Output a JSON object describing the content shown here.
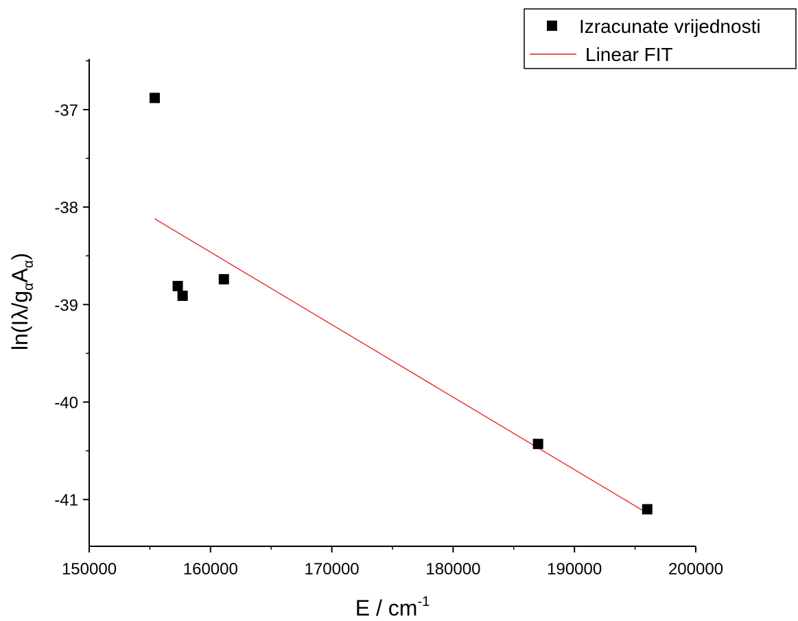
{
  "chart_data": {
    "type": "scatter",
    "title": "",
    "xlabel": {
      "base": "E / cm",
      "sup": "-1"
    },
    "ylabel": {
      "prefix": "ln(Iλ/g",
      "sub1": "α",
      "mid": "A",
      "sub2": "α",
      "suffix": ")"
    },
    "xlim": [
      150000,
      200000
    ],
    "ylim": [
      -41.48,
      -36.48
    ],
    "x_ticks": [
      150000,
      160000,
      170000,
      180000,
      190000,
      200000
    ],
    "x_tick_labels": [
      "150000",
      "160000",
      "170000",
      "180000",
      "190000",
      "200000"
    ],
    "y_ticks": [
      -41,
      -40,
      -39,
      -38,
      -37
    ],
    "y_tick_labels": [
      "-41",
      "-40",
      "-39",
      "-38",
      "-37"
    ],
    "grid": false,
    "legend_position": "top-right",
    "series": [
      {
        "name": "Izracunate vrijednosti",
        "kind": "scatter",
        "marker": "square",
        "color": "#000000",
        "x": [
          155400,
          157300,
          157700,
          161100,
          187000,
          196000
        ],
        "y": [
          -36.88,
          -38.81,
          -38.91,
          -38.74,
          -40.43,
          -41.1
        ]
      },
      {
        "name": "Linear FIT",
        "kind": "line",
        "color": "#e31a1c",
        "x": [
          155400,
          196000
        ],
        "y": [
          -38.12,
          -41.14
        ]
      }
    ]
  }
}
